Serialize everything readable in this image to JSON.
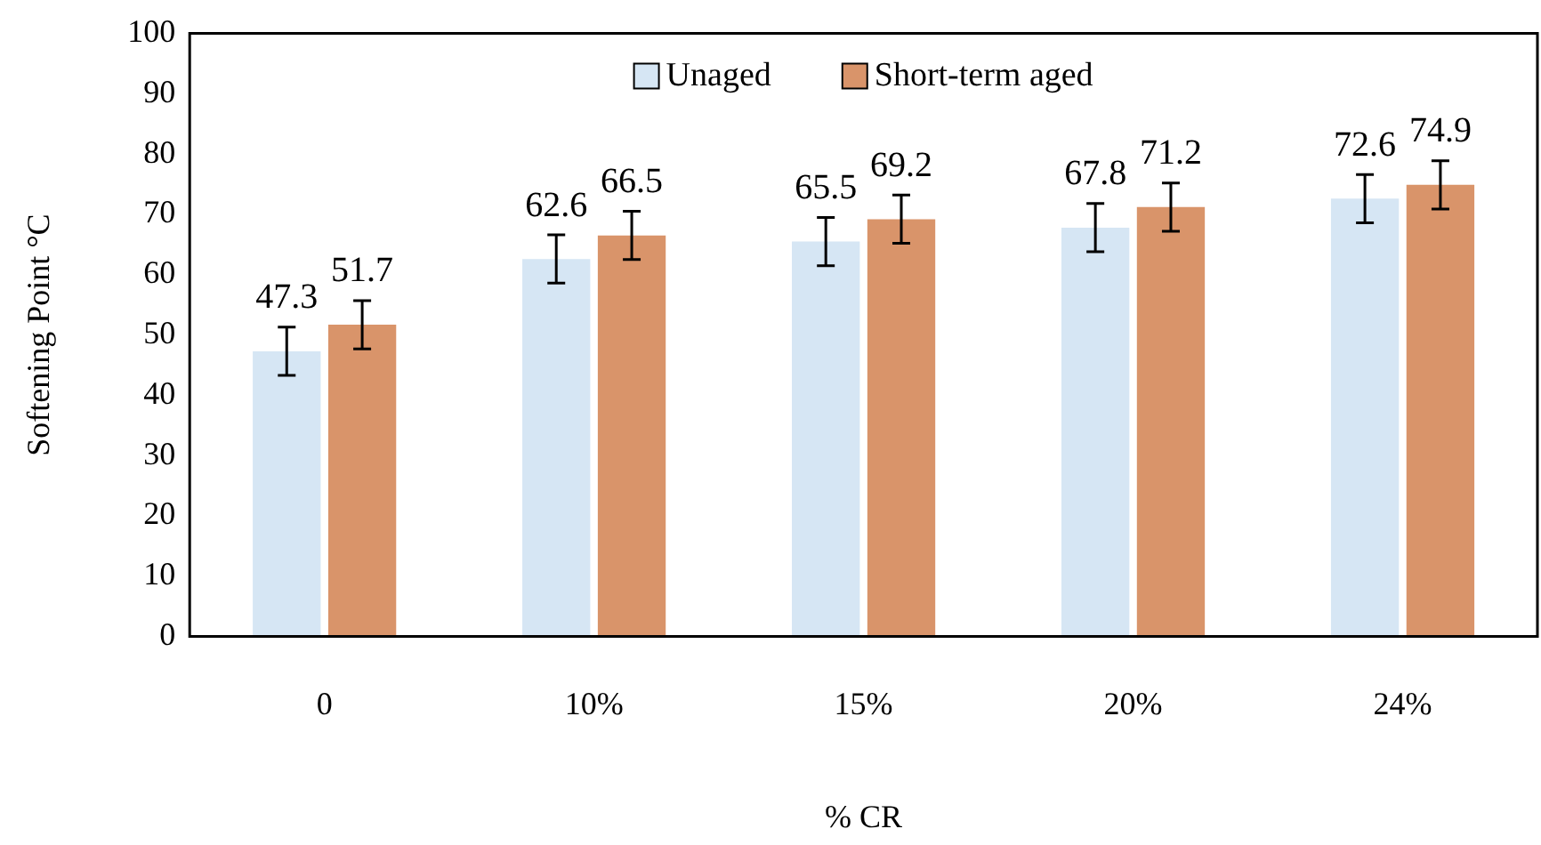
{
  "chart_data": {
    "type": "bar",
    "xlabel": "% CR",
    "ylabel": "Softening Point °C",
    "categories": [
      "0",
      "10%",
      "15%",
      "20%",
      "24%"
    ],
    "series": [
      {
        "name": "Unaged",
        "color": "#d6e6f4",
        "values": [
          47.3,
          62.6,
          65.5,
          67.8,
          72.6
        ],
        "errors": [
          4,
          4,
          4,
          4,
          4
        ]
      },
      {
        "name": "Short-term aged",
        "color": "#d9946a",
        "values": [
          51.7,
          66.5,
          69.2,
          71.2,
          74.9
        ],
        "errors": [
          4,
          4,
          4,
          4,
          4
        ]
      }
    ],
    "ylim": [
      0,
      100
    ],
    "yticks": [
      0,
      10,
      20,
      30,
      40,
      50,
      60,
      70,
      80,
      90,
      100
    ],
    "grid": false,
    "legend": "top",
    "data_labels": true
  }
}
